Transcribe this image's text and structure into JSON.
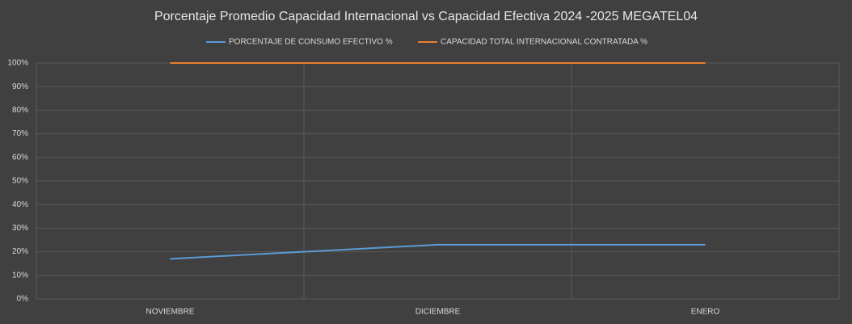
{
  "chart_data": {
    "type": "line",
    "title": "Porcentaje Promedio Capacidad Internacional vs Capacidad Efectiva 2024 -2025 MEGATEL04",
    "categories": [
      "NOVIEMBRE",
      "DICIEMBRE",
      "ENERO"
    ],
    "series": [
      {
        "name": "PORCENTAJE DE CONSUMO EFECTIVO %",
        "color": "#5b9bd5",
        "values": [
          17,
          23,
          23
        ]
      },
      {
        "name": "CAPACIDAD TOTAL INTERNACIONAL CONTRATADA %",
        "color": "#ed7d31",
        "values": [
          100,
          100,
          100
        ]
      }
    ],
    "ylim": [
      0,
      100
    ],
    "yticks": [
      {
        "value": 0,
        "label": "0%"
      },
      {
        "value": 10,
        "label": "10%"
      },
      {
        "value": 20,
        "label": "20%"
      },
      {
        "value": 30,
        "label": "30%"
      },
      {
        "value": 40,
        "label": "40%"
      },
      {
        "value": 50,
        "label": "50%"
      },
      {
        "value": 60,
        "label": "60%"
      },
      {
        "value": 70,
        "label": "70%"
      },
      {
        "value": 80,
        "label": "80%"
      },
      {
        "value": 90,
        "label": "90%"
      },
      {
        "value": 100,
        "label": "100%"
      }
    ],
    "grid": true,
    "legend": "top"
  }
}
